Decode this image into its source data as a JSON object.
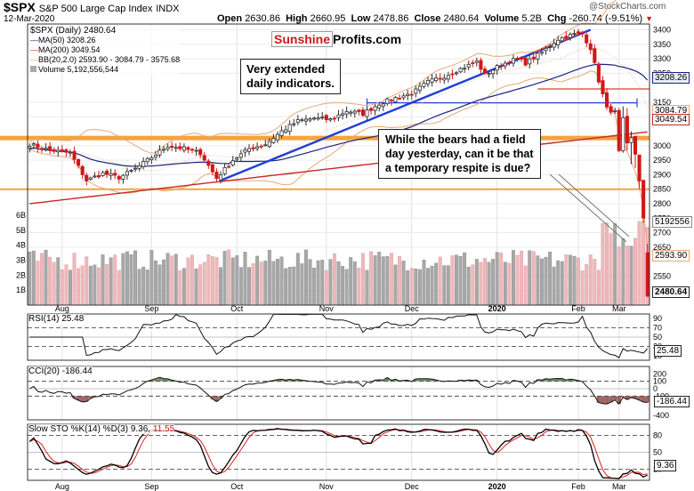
{
  "header": {
    "symbol": "$SPX",
    "index_name": "S&P 500 Large Cap Index",
    "exchange": "INDX",
    "date": "12-Mar-2020",
    "open_label": "Open",
    "open": "2630.86",
    "high_label": "High",
    "high": "2660.95",
    "low_label": "Low",
    "low": "2478.86",
    "close_label": "Close",
    "close": "2480.64",
    "volume_label": "Volume",
    "volume": "5.2B",
    "chg_label": "Chg",
    "chg": "-260.74 (-9.51%)",
    "chg_arrow": "▼",
    "watermark": "@StockCharts.com"
  },
  "legend": {
    "price": "$SPX (Daily) 2480.64",
    "ma50": "MA(50) 3208.26",
    "ma200": "MA(200) 3049.54",
    "bb": "BB(20,2.0) 2593.90 - 3084.79 - 3575.68",
    "volume": "Volume 5,192,556,544"
  },
  "brand": {
    "part1": "Sunshine",
    "part2": "Profits.com",
    "color1": "#d01818"
  },
  "annotations": {
    "note1_line1": "Very extended",
    "note1_line2": "daily indicators.",
    "note2_line1": "While the bears had a field",
    "note2_line2": "day yesterday, can it be that",
    "note2_line3": "a temporary respite is due?"
  },
  "right_tags": {
    "ma50": "3208.26",
    "bb_upper": "3084.79",
    "ma200": "3049.54",
    "volume": "5192556",
    "bb_lower": "2593.90",
    "close": "2480.64",
    "rsi": "25.48",
    "cci": "-186.44",
    "sto": "9.36"
  },
  "panels": {
    "rsi_label": "RSI(14) 25.48",
    "cci_label": "CCI(20) -186.44",
    "sto_label_main": "Slow STO %K(14) %D(3) 9.36,",
    "sto_label_d": "11.55"
  },
  "colors": {
    "up": "#2e2e2e",
    "down": "#d01818",
    "ma50": "#1a237e",
    "ma200": "#c62828",
    "bb": "#e8a878",
    "trendline": "#1f3fd6",
    "hline_orange": "#f4a340",
    "hline_blue": "#2a3fd6",
    "vol_up": "#a8a8a8",
    "vol_down": "#f0b8bc",
    "cci_fill_pos": "#5c7a52",
    "cci_fill_neg": "#8b4a48"
  },
  "chart_data": {
    "type": "candlestick",
    "x_tick_labels": [
      "Aug",
      "Sep",
      "Oct",
      "Nov",
      "Dec",
      "2020",
      "Feb",
      "Mar"
    ],
    "price_axis": {
      "ticks": [
        "3400",
        "3350",
        "3300",
        "3250",
        "3150",
        "3100",
        "3000",
        "2950",
        "2900",
        "2850",
        "2800",
        "2750",
        "2700",
        "2650",
        "2550",
        "2500"
      ],
      "ylim": [
        2450,
        3420
      ]
    },
    "volume_axis": {
      "ticks": [
        "1B",
        "2B",
        "3B",
        "4B",
        "5B",
        "6B"
      ]
    },
    "horizontal_levels": [
      {
        "name": "orange-upper",
        "value": 3025
      },
      {
        "name": "orange-lower",
        "value": 2850
      },
      {
        "name": "orange-top",
        "value": 3196
      },
      {
        "name": "blue-level",
        "value": 3148
      }
    ],
    "close_anchors": [
      [
        0,
        3005
      ],
      [
        5,
        2985
      ],
      [
        10,
        2975
      ],
      [
        14,
        2880
      ],
      [
        18,
        2905
      ],
      [
        22,
        2890
      ],
      [
        26,
        2920
      ],
      [
        30,
        2960
      ],
      [
        34,
        3000
      ],
      [
        38,
        2990
      ],
      [
        42,
        2975
      ],
      [
        46,
        2888
      ],
      [
        50,
        2950
      ],
      [
        54,
        2990
      ],
      [
        58,
        3005
      ],
      [
        62,
        3050
      ],
      [
        66,
        3085
      ],
      [
        70,
        3095
      ],
      [
        74,
        3090
      ],
      [
        78,
        3120
      ],
      [
        82,
        3110
      ],
      [
        86,
        3145
      ],
      [
        90,
        3165
      ],
      [
        94,
        3180
      ],
      [
        98,
        3220
      ],
      [
        102,
        3240
      ],
      [
        106,
        3265
      ],
      [
        110,
        3290
      ],
      [
        112,
        3245
      ],
      [
        116,
        3280
      ],
      [
        120,
        3300
      ],
      [
        122,
        3285
      ],
      [
        126,
        3322
      ],
      [
        130,
        3368
      ],
      [
        134,
        3385
      ],
      [
        136,
        3386
      ],
      [
        138,
        3337
      ],
      [
        140,
        3225
      ],
      [
        142,
        3128
      ],
      [
        144,
        3116
      ],
      [
        145,
        2978
      ],
      [
        146,
        3090
      ],
      [
        147,
        3003
      ],
      [
        148,
        3024
      ],
      [
        149,
        2972
      ],
      [
        150,
        2882
      ],
      [
        151,
        2747
      ],
      [
        152,
        2480.64
      ]
    ],
    "rsi": {
      "label": "RSI(14)",
      "last": 25.48,
      "ticks": [
        "90",
        "70",
        "50",
        "30",
        "10"
      ],
      "ylim": [
        0,
        100
      ]
    },
    "cci": {
      "label": "CCI(20)",
      "last": -186.44,
      "ticks": [
        "200",
        "100",
        "0",
        "-100",
        "-400"
      ]
    },
    "stochastic": {
      "label": "Slow STO %K(14) %D(3)",
      "k": 9.36,
      "d": 11.55,
      "ticks": [
        "80",
        "50",
        "20"
      ],
      "ylim": [
        0,
        100
      ]
    }
  }
}
